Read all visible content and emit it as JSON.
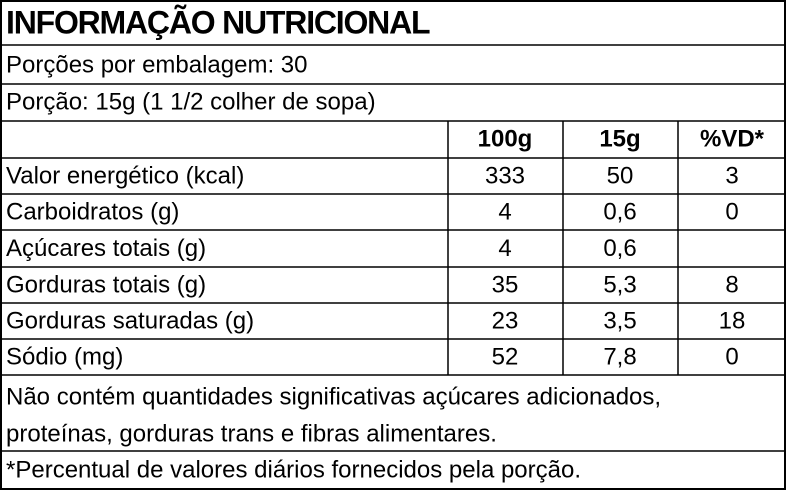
{
  "title": "INFORMAÇÃO NUTRICIONAL",
  "servings_per_package": "Porções por embalagem: 30",
  "serving_size": "Porção: 15g (1 1/2 colher de sopa)",
  "table": {
    "header": [
      "100g",
      "15g",
      "%VD*"
    ],
    "rows": [
      [
        "Valor energético (kcal)",
        "333",
        "50",
        "3"
      ],
      [
        "Carboidratos (g)",
        "4",
        "0,6",
        "0"
      ],
      [
        "Açúcares totais (g)",
        "4",
        "0,6",
        null
      ],
      [
        "Gorduras totais (g)",
        "35",
        "5,3",
        "8"
      ],
      [
        "Gorduras saturadas (g)",
        "23",
        "3,5",
        "18"
      ],
      [
        "Sódio (mg)",
        "52",
        "7,8",
        "0"
      ]
    ]
  },
  "note_lines": [
    "Não contém quantidades significativas açúcares adicionados,",
    "proteínas, gorduras trans e fibras alimentares."
  ],
  "footnote": "*Percentual de valores diários fornecidos pela porção."
}
